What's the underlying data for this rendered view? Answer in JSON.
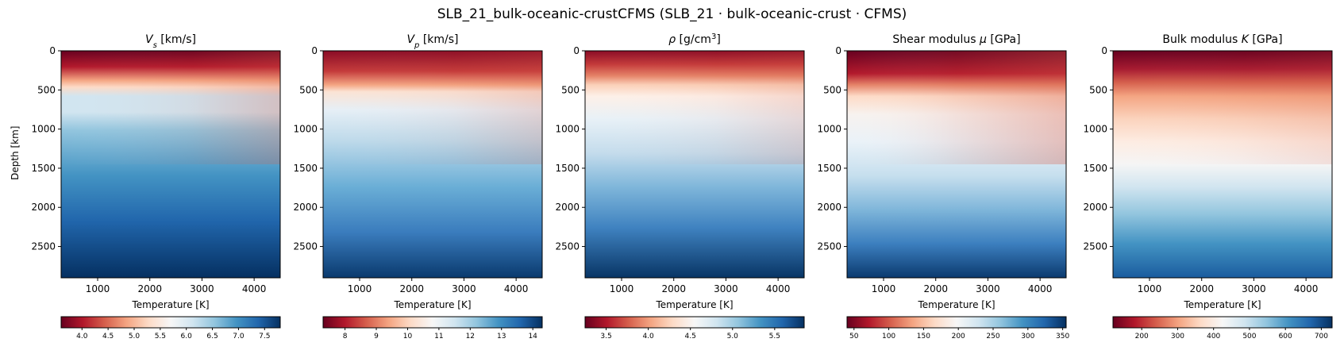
{
  "figure": {
    "title": "SLB_21_bulk-oceanic-crustCFMS   (SLB_21 · bulk-oceanic-crust · CFMS)"
  },
  "chart_data": [
    {
      "type": "heatmap",
      "title_main": "V",
      "title_sub": "s",
      "title_sup": "",
      "title_rest": " [km/s]",
      "xlabel": "Temperature [K]",
      "ylabel": "Depth [km]",
      "xlim": [
        300,
        4500
      ],
      "ylim": [
        2900,
        0
      ],
      "xticks": [
        1000,
        2000,
        3000,
        4000
      ],
      "yticks": [
        0,
        500,
        1000,
        1500,
        2000,
        2500
      ],
      "colormap": "RdBu",
      "cbar_range": [
        3.6,
        7.8
      ],
      "cbar_ticks": [
        "4.0",
        "4.5",
        "5.0",
        "5.5",
        "6.0",
        "6.5",
        "7.0",
        "7.5"
      ],
      "cbar_tick_values": [
        4.0,
        4.5,
        5.0,
        5.5,
        6.0,
        6.5,
        7.0,
        7.5
      ]
    },
    {
      "type": "heatmap",
      "title_main": "V",
      "title_sub": "p",
      "title_sup": "",
      "title_rest": " [km/s]",
      "xlabel": "Temperature [K]",
      "ylabel": "",
      "xlim": [
        300,
        4500
      ],
      "ylim": [
        2900,
        0
      ],
      "xticks": [
        1000,
        2000,
        3000,
        4000
      ],
      "yticks": [
        0,
        500,
        1000,
        1500,
        2000,
        2500
      ],
      "colormap": "RdBu",
      "cbar_range": [
        7.3,
        14.3
      ],
      "cbar_ticks": [
        "8",
        "9",
        "10",
        "11",
        "12",
        "13",
        "14"
      ],
      "cbar_tick_values": [
        8,
        9,
        10,
        11,
        12,
        13,
        14
      ]
    },
    {
      "type": "heatmap",
      "title_main": "ρ",
      "title_sub": "",
      "title_sup": "3",
      "title_rest": " [g/cm",
      "title_close": "]",
      "xlabel": "Temperature [K]",
      "ylabel": "",
      "xlim": [
        300,
        4500
      ],
      "ylim": [
        2900,
        0
      ],
      "xticks": [
        1000,
        2000,
        3000,
        4000
      ],
      "yticks": [
        0,
        500,
        1000,
        1500,
        2000,
        2500
      ],
      "colormap": "RdBu",
      "cbar_range": [
        3.25,
        5.85
      ],
      "cbar_ticks": [
        "3.5",
        "4.0",
        "4.5",
        "5.0",
        "5.5"
      ],
      "cbar_tick_values": [
        3.5,
        4.0,
        4.5,
        5.0,
        5.5
      ]
    },
    {
      "type": "heatmap",
      "title_main": "Shear modulus ",
      "title_sym": "μ",
      "title_sub": "",
      "title_sup": "",
      "title_rest": " [GPa]",
      "xlabel": "Temperature [K]",
      "ylabel": "",
      "xlim": [
        300,
        4500
      ],
      "ylim": [
        2900,
        0
      ],
      "xticks": [
        1000,
        2000,
        3000,
        4000
      ],
      "yticks": [
        0,
        500,
        1000,
        1500,
        2000,
        2500
      ],
      "colormap": "RdBu",
      "cbar_range": [
        40,
        355
      ],
      "cbar_ticks": [
        "50",
        "100",
        "150",
        "200",
        "250",
        "300",
        "350"
      ],
      "cbar_tick_values": [
        50,
        100,
        150,
        200,
        250,
        300,
        350
      ]
    },
    {
      "type": "heatmap",
      "title_main": "Bulk modulus ",
      "title_sym": "K",
      "title_sub": "",
      "title_sup": "",
      "title_rest": " [GPa]",
      "xlabel": "Temperature [K]",
      "ylabel": "",
      "xlim": [
        300,
        4500
      ],
      "ylim": [
        2900,
        0
      ],
      "xticks": [
        1000,
        2000,
        3000,
        4000
      ],
      "yticks": [
        0,
        500,
        1000,
        1500,
        2000,
        2500
      ],
      "colormap": "RdBu",
      "cbar_range": [
        120,
        730
      ],
      "cbar_ticks": [
        "200",
        "300",
        "400",
        "500",
        "600",
        "700"
      ],
      "cbar_tick_values": [
        200,
        300,
        400,
        500,
        600,
        700
      ]
    }
  ]
}
